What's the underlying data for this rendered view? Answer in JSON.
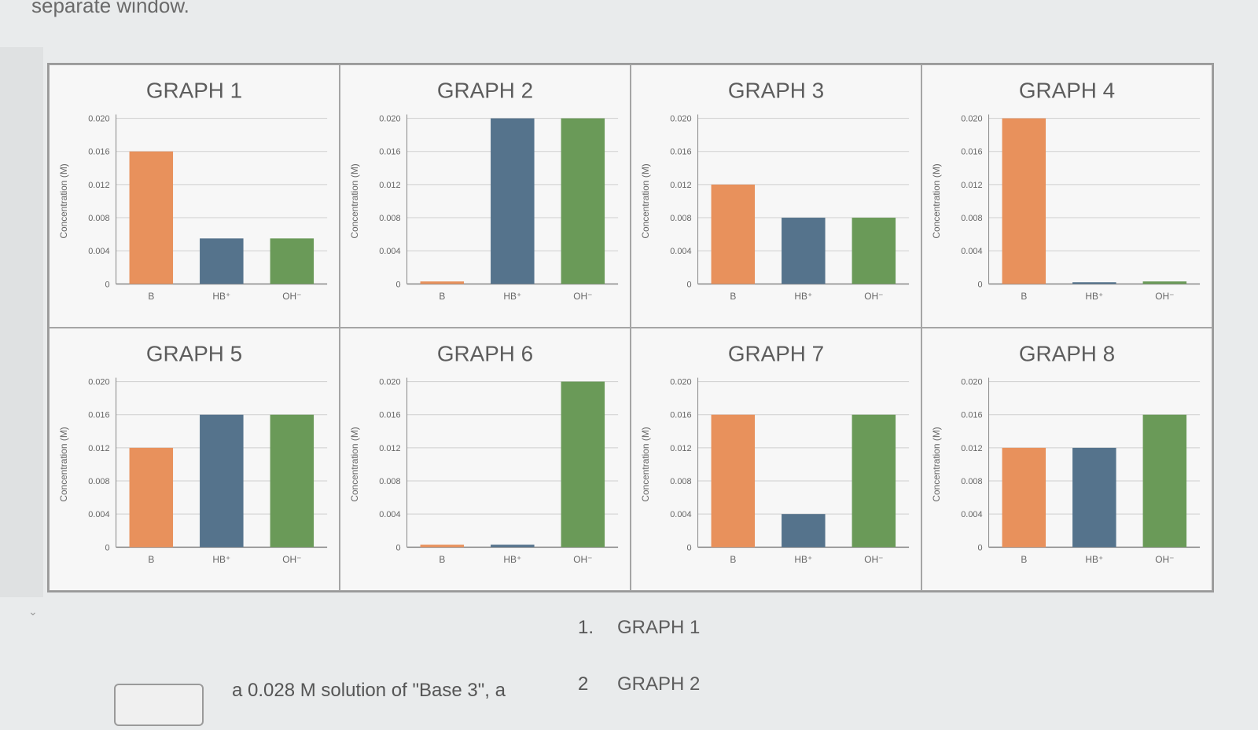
{
  "page": {
    "top_text": "separate window.",
    "question_text": "a 0.028 M solution of \"Base 3\", a"
  },
  "answers": [
    {
      "num": "1.",
      "label": "GRAPH 1"
    },
    {
      "num": "2",
      "label": "GRAPH 2"
    }
  ],
  "colors": {
    "B": "#e8915c",
    "HB": "#55738c",
    "OH": "#6a9a58",
    "grid": "#cfcfcf",
    "axis": "#888888"
  },
  "chart_data": [
    {
      "type": "bar",
      "title": "GRAPH 1",
      "ylabel": "Concentration (M)",
      "categories": [
        "B",
        "HB⁺",
        "OH⁻"
      ],
      "values": [
        0.016,
        0.0055,
        0.0055
      ],
      "ylim": [
        0,
        0.02
      ],
      "yticks": [
        "0",
        "0.004",
        "0.008",
        "0.012",
        "0.016",
        "0.020"
      ],
      "grid": true
    },
    {
      "type": "bar",
      "title": "GRAPH 2",
      "ylabel": "Concentration (M)",
      "categories": [
        "B",
        "HB⁺",
        "OH⁻"
      ],
      "values": [
        0.0003,
        0.02,
        0.02
      ],
      "ylim": [
        0,
        0.02
      ],
      "yticks": [
        "0",
        "0.004",
        "0.008",
        "0.012",
        "0.016",
        "0.020"
      ],
      "grid": true
    },
    {
      "type": "bar",
      "title": "GRAPH 3",
      "ylabel": "Concentration (M)",
      "categories": [
        "B",
        "HB⁺",
        "OH⁻"
      ],
      "values": [
        0.012,
        0.008,
        0.008
      ],
      "ylim": [
        0,
        0.02
      ],
      "yticks": [
        "0",
        "0.004",
        "0.008",
        "0.012",
        "0.016",
        "0.020"
      ],
      "grid": true
    },
    {
      "type": "bar",
      "title": "GRAPH 4",
      "ylabel": "Concentration (M)",
      "categories": [
        "B",
        "HB⁺",
        "OH⁻"
      ],
      "values": [
        0.02,
        0.0002,
        0.0003
      ],
      "ylim": [
        0,
        0.02
      ],
      "yticks": [
        "0",
        "0.004",
        "0.008",
        "0.012",
        "0.016",
        "0.020"
      ],
      "grid": true
    },
    {
      "type": "bar",
      "title": "GRAPH 5",
      "ylabel": "Concentration (M)",
      "categories": [
        "B",
        "HB⁺",
        "OH⁻"
      ],
      "values": [
        0.012,
        0.016,
        0.016
      ],
      "ylim": [
        0,
        0.02
      ],
      "yticks": [
        "0",
        "0.004",
        "0.008",
        "0.012",
        "0.016",
        "0.020"
      ],
      "grid": true
    },
    {
      "type": "bar",
      "title": "GRAPH 6",
      "ylabel": "Concentration (M)",
      "categories": [
        "B",
        "HB⁺",
        "OH⁻"
      ],
      "values": [
        0.0003,
        0.0003,
        0.02
      ],
      "ylim": [
        0,
        0.02
      ],
      "yticks": [
        "0",
        "0.004",
        "0.008",
        "0.012",
        "0.016",
        "0.020"
      ],
      "grid": true
    },
    {
      "type": "bar",
      "title": "GRAPH 7",
      "ylabel": "Concentration (M)",
      "categories": [
        "B",
        "HB⁺",
        "OH⁻"
      ],
      "values": [
        0.016,
        0.004,
        0.016
      ],
      "ylim": [
        0,
        0.02
      ],
      "yticks": [
        "0",
        "0.004",
        "0.008",
        "0.012",
        "0.016",
        "0.020"
      ],
      "grid": true
    },
    {
      "type": "bar",
      "title": "GRAPH 8",
      "ylabel": "Concentration (M)",
      "categories": [
        "B",
        "HB⁺",
        "OH⁻"
      ],
      "values": [
        0.012,
        0.012,
        0.016
      ],
      "ylim": [
        0,
        0.02
      ],
      "yticks": [
        "0",
        "0.004",
        "0.008",
        "0.012",
        "0.016",
        "0.020"
      ],
      "grid": true
    }
  ]
}
